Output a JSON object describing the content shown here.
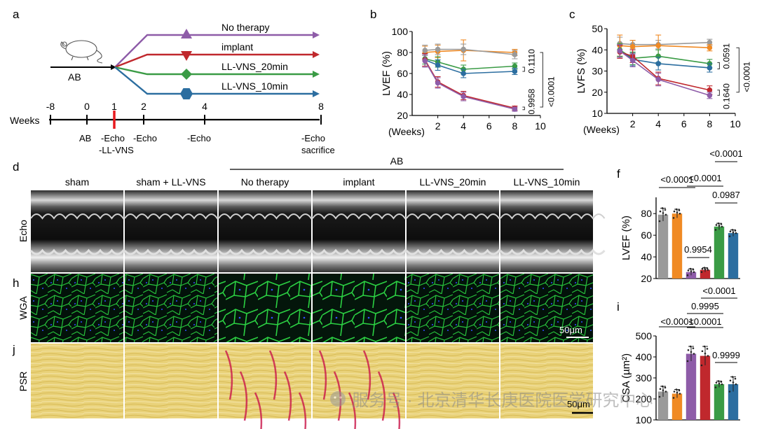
{
  "panel_letters": [
    "a",
    "b",
    "c",
    "d",
    "f",
    "h",
    "i",
    "j"
  ],
  "schematic": {
    "mouse_label": "AB",
    "arms": [
      {
        "label": "No therapy",
        "color": "#8e5ca8",
        "marker": "triangle-up"
      },
      {
        "label": "implant",
        "color": "#c0282d",
        "marker": "triangle-down"
      },
      {
        "label": "LL-VNS_20min",
        "color": "#3a9b45",
        "marker": "diamond"
      },
      {
        "label": "LL-VNS_10min",
        "color": "#2c6ea0",
        "marker": "hexagon"
      }
    ],
    "timeline": {
      "axis_label": "Weeks",
      "ticks": [
        {
          "v": "-8",
          "w": -8
        },
        {
          "v": "0",
          "w": 0
        },
        {
          "v": "1",
          "w": 1
        },
        {
          "v": "2",
          "w": 2
        },
        {
          "v": "4",
          "w": 4
        },
        {
          "v": "8",
          "w": 8
        }
      ],
      "events": {
        "e0": "AB",
        "e1": "-Echo",
        "e1b": "-LL-VNS",
        "e2": "-Echo",
        "e4": "-Echo",
        "e8": "-Echo",
        "e8b": "sacrifice"
      },
      "highlight_color": "#e8191d"
    }
  },
  "chart_data": [
    {
      "panel": "b",
      "type": "line",
      "xlabel": "(Weeks)",
      "ylabel": "LVEF (%)",
      "xlim": [
        0,
        10
      ],
      "ylim": [
        20,
        100
      ],
      "xticks": [
        2,
        4,
        6,
        8,
        10
      ],
      "yticks": [
        20,
        40,
        60,
        80,
        100
      ],
      "x": [
        1,
        2,
        4,
        8
      ],
      "series": [
        {
          "color": "#f08a24",
          "values": [
            80,
            81,
            82,
            80
          ],
          "err": [
            6,
            6,
            10,
            3
          ]
        },
        {
          "color": "#9a9a9a",
          "values": [
            82,
            83,
            83,
            78
          ],
          "err": [
            5,
            5,
            5,
            4
          ]
        },
        {
          "color": "#3a9b45",
          "values": [
            74,
            71,
            64,
            67
          ],
          "err": [
            5,
            5,
            4,
            3
          ]
        },
        {
          "color": "#2c6ea0",
          "values": [
            73,
            68,
            60,
            62
          ],
          "err": [
            6,
            5,
            4,
            3
          ]
        },
        {
          "color": "#c0282d",
          "values": [
            73,
            52,
            39,
            27
          ],
          "err": [
            6,
            5,
            4,
            2
          ]
        },
        {
          "color": "#8e5ca8",
          "values": [
            72,
            51,
            38,
            26
          ],
          "err": [
            6,
            5,
            4,
            2
          ]
        }
      ],
      "annotations": [
        "0.1110",
        "<0.0001",
        "0.9958"
      ]
    },
    {
      "panel": "c",
      "type": "line",
      "xlabel": "(Weeks)",
      "ylabel": "LVFS (%)",
      "xlim": [
        0,
        10
      ],
      "ylim": [
        10,
        50
      ],
      "xticks": [
        2,
        4,
        6,
        8,
        10
      ],
      "yticks": [
        10,
        20,
        30,
        40,
        50
      ],
      "x": [
        1,
        2,
        4,
        8
      ],
      "series": [
        {
          "color": "#9a9a9a",
          "values": [
            43,
            42.5,
            42.5,
            43.5
          ],
          "err": [
            3,
            2,
            2,
            1.5
          ]
        },
        {
          "color": "#f08a24",
          "values": [
            42,
            41.5,
            42,
            41
          ],
          "err": [
            5,
            3,
            5,
            1.5
          ]
        },
        {
          "color": "#3a9b45",
          "values": [
            40,
            36,
            37,
            33.5
          ],
          "err": [
            3,
            3,
            3,
            2
          ]
        },
        {
          "color": "#2c6ea0",
          "values": [
            39.5,
            35.5,
            33.5,
            31.5
          ],
          "err": [
            3,
            3,
            3,
            2
          ]
        },
        {
          "color": "#c0282d",
          "values": [
            39,
            37,
            26.5,
            21
          ],
          "err": [
            3,
            3,
            3,
            2
          ]
        },
        {
          "color": "#8e5ca8",
          "values": [
            39.5,
            35,
            26,
            18.5
          ],
          "err": [
            3,
            3,
            3,
            1.5
          ]
        }
      ],
      "annotations": [
        "0.0591",
        "<0.0001",
        "0.1640"
      ]
    },
    {
      "panel": "f",
      "type": "bar",
      "ylabel": "LVEF (%)",
      "ylim": [
        20,
        95
      ],
      "yticks": [
        20,
        40,
        60,
        80
      ],
      "values": [
        79,
        80,
        26,
        28,
        68,
        62
      ],
      "err": [
        6,
        4,
        3,
        2,
        3,
        3
      ],
      "colors": [
        "#9a9a9a",
        "#f08a24",
        "#8e5ca8",
        "#c0282d",
        "#3a9b45",
        "#2c6ea0"
      ],
      "comparisons": [
        "<0.0001",
        "<0.0001",
        "<0.0001",
        "0.9954",
        "0.0987"
      ]
    },
    {
      "panel": "i",
      "type": "bar",
      "ylabel": "CSA (µm²)",
      "ylim": [
        100,
        500
      ],
      "yticks": [
        100,
        200,
        300,
        400,
        500
      ],
      "values": [
        235,
        225,
        415,
        405,
        270,
        270
      ],
      "err": [
        25,
        20,
        35,
        45,
        15,
        35
      ],
      "colors": [
        "#9a9a9a",
        "#f08a24",
        "#8e5ca8",
        "#c0282d",
        "#3a9b45",
        "#2c6ea0"
      ],
      "comparisons": [
        "<0.0001",
        "0.9995",
        "<0.0001",
        "<0.0001",
        "0.9999"
      ]
    }
  ],
  "micrographs": {
    "group_header": "AB",
    "columns": [
      "sham",
      "sham + LL-VNS",
      "No therapy",
      "implant",
      "LL-VNS_20min",
      "LL-VNS_10min"
    ],
    "rows": [
      {
        "label": "Echo",
        "letter": "d"
      },
      {
        "label": "WGA",
        "letter": "h"
      },
      {
        "label": "PSR",
        "letter": "j"
      }
    ],
    "scale_bar": "50μm",
    "scale_bar_psr": "50μm"
  },
  "watermark": "服务号 · 北京清华长庚医院医学研究中心"
}
